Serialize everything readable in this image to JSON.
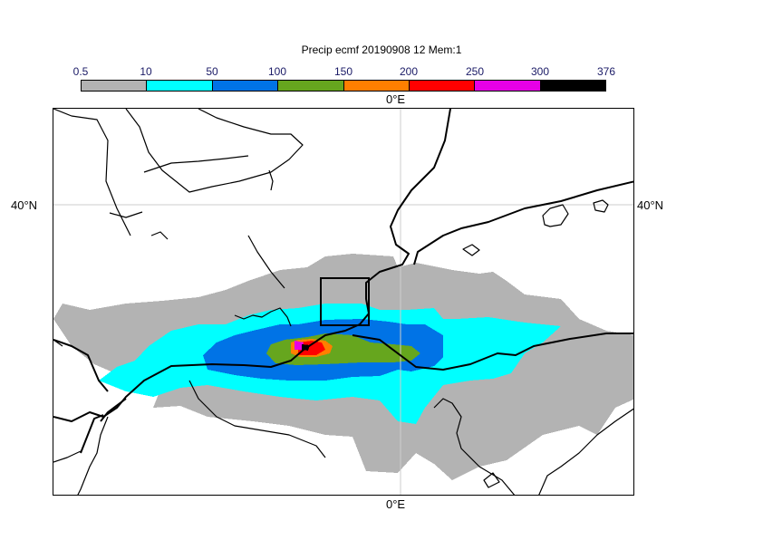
{
  "title": "Precip ecmf 20190908 12 Mem:1",
  "colorbar": {
    "ticks": [
      "0.5",
      "10",
      "50",
      "100",
      "150",
      "200",
      "250",
      "300",
      "376"
    ],
    "colors": [
      "#b3b3b3",
      "#00ffff",
      "#0073e6",
      "#66a61e",
      "#ff7f00",
      "#ff0000",
      "#e600e6",
      "#000000"
    ]
  },
  "axes": {
    "lon_top": "0°E",
    "lon_bottom": "0°E",
    "lat_left": "40°N",
    "lat_right": "40°N"
  }
}
